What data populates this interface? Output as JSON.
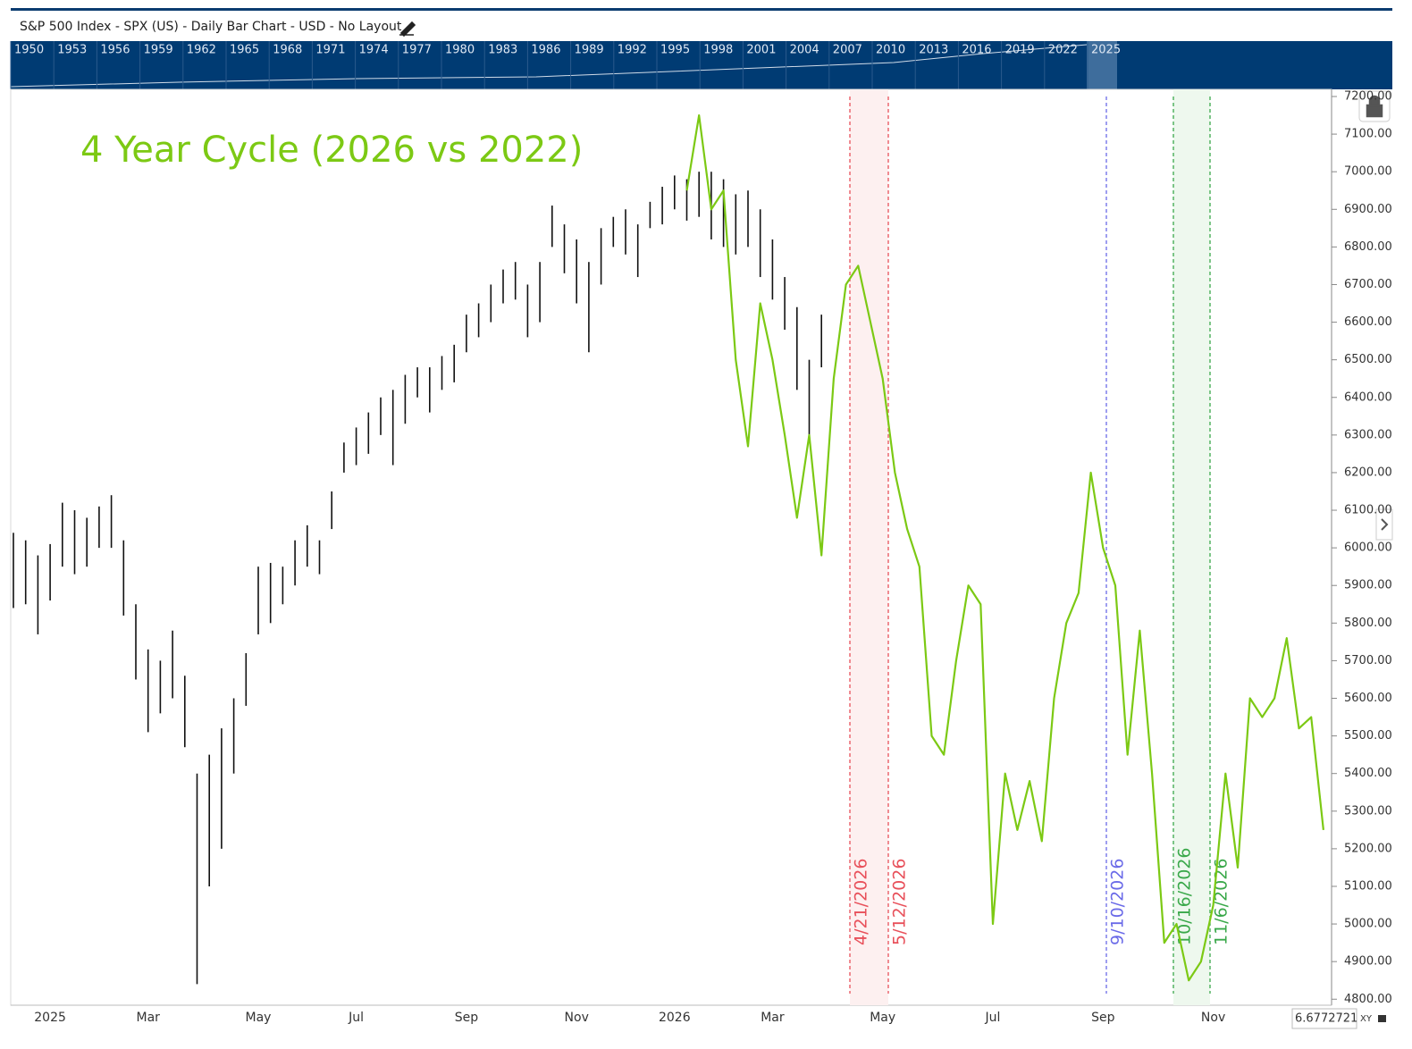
{
  "header": {
    "title": "S&P 500 Index - SPX (US) - Daily Bar Chart - USD - No Layout"
  },
  "navigator": {
    "years": [
      "1950",
      "1953",
      "1956",
      "1959",
      "1962",
      "1965",
      "1968",
      "1971",
      "1974",
      "1977",
      "1980",
      "1983",
      "1986",
      "1989",
      "1992",
      "1995",
      "1998",
      "2001",
      "2004",
      "2007",
      "2010",
      "2013",
      "2016",
      "2019",
      "2022",
      "2025"
    ]
  },
  "footer": {
    "readout": "6.6772721",
    "mode": "XY"
  },
  "chart_data": {
    "type": "ohlc",
    "title": "4 Year Cycle (2026 vs 2022)",
    "categories": [
      null,
      null,
      null,
      "2025",
      null,
      null,
      null,
      null,
      null,
      null,
      null,
      "Mar",
      null,
      null,
      null,
      null,
      null,
      null,
      null,
      null,
      "May",
      null,
      null,
      null,
      null,
      null,
      null,
      null,
      "Jul",
      null,
      null,
      null,
      null,
      null,
      null,
      null,
      null,
      "Sep",
      null,
      null,
      null,
      null,
      null,
      null,
      null,
      null,
      "Nov",
      null,
      null,
      null,
      null,
      null,
      null,
      null,
      "2026",
      null,
      null,
      null,
      null,
      null,
      null,
      null,
      "Mar",
      null,
      null,
      null,
      null,
      null,
      null,
      null,
      null,
      "May",
      null,
      null,
      null,
      null,
      null,
      null,
      null,
      null,
      "Jul",
      null,
      null,
      null,
      null,
      null,
      null,
      null,
      null,
      "Sep",
      null,
      null,
      null,
      null,
      null,
      null,
      null,
      null,
      "Nov",
      null,
      null,
      null,
      null,
      null,
      null,
      null,
      null,
      null
    ],
    "bars": {
      "color": "#111111",
      "high": [
        6040,
        6020,
        5980,
        6010,
        6120,
        6100,
        6080,
        6110,
        6140,
        6020,
        5850,
        5730,
        5700,
        5780,
        5660,
        5400,
        5450,
        5520,
        5600,
        5720,
        5950,
        5960,
        5950,
        6020,
        6060,
        6020,
        6150,
        6280,
        6320,
        6360,
        6400,
        6420,
        6460,
        6480,
        6480,
        6510,
        6540,
        6620,
        6650,
        6700,
        6740,
        6760,
        6700,
        6760,
        6910,
        6860,
        6820,
        6760,
        6850,
        6880,
        6900,
        6860,
        6920,
        6960,
        6990,
        6980,
        7000,
        7000,
        6980,
        6940,
        6950,
        6900,
        6820,
        6720,
        6640,
        6500,
        6620,
        null,
        null,
        null,
        null,
        null,
        null,
        null,
        null,
        null,
        null,
        null,
        null,
        null,
        null,
        null,
        null,
        null,
        null,
        null,
        null,
        null,
        null,
        null,
        null,
        null,
        null,
        null,
        null,
        null,
        null,
        null,
        null,
        null,
        null,
        null,
        null,
        null,
        null,
        null,
        null,
        null
      ],
      "low": [
        5840,
        5850,
        5770,
        5860,
        5950,
        5930,
        5950,
        6000,
        6000,
        5820,
        5650,
        5510,
        5560,
        5600,
        5470,
        4840,
        5100,
        5200,
        5400,
        5580,
        5770,
        5800,
        5850,
        5900,
        5950,
        5930,
        6050,
        6200,
        6220,
        6250,
        6300,
        6220,
        6330,
        6400,
        6360,
        6420,
        6440,
        6520,
        6560,
        6600,
        6650,
        6660,
        6560,
        6600,
        6800,
        6730,
        6650,
        6520,
        6700,
        6800,
        6780,
        6720,
        6850,
        6860,
        6900,
        6870,
        6880,
        6820,
        6800,
        6780,
        6800,
        6720,
        6660,
        6580,
        6420,
        6300,
        6480,
        null,
        null,
        null,
        null,
        null,
        null,
        null,
        null,
        null,
        null,
        null,
        null,
        null,
        null,
        null,
        null,
        null,
        null,
        null,
        null,
        null,
        null,
        null,
        null,
        null,
        null,
        null,
        null,
        null,
        null,
        null,
        null,
        null,
        null,
        null,
        null,
        null,
        null,
        null,
        null,
        null
      ]
    },
    "line": {
      "color": "#7cc914",
      "values": [
        null,
        null,
        null,
        null,
        null,
        null,
        null,
        null,
        null,
        null,
        null,
        null,
        null,
        null,
        null,
        null,
        null,
        null,
        null,
        null,
        null,
        null,
        null,
        null,
        null,
        null,
        null,
        null,
        null,
        null,
        null,
        null,
        null,
        null,
        null,
        null,
        null,
        null,
        null,
        null,
        null,
        null,
        null,
        null,
        null,
        null,
        null,
        null,
        null,
        null,
        null,
        null,
        null,
        null,
        null,
        6950,
        7150,
        6900,
        6950,
        6500,
        6270,
        6650,
        6500,
        6300,
        6080,
        6300,
        5980,
        6450,
        6700,
        6750,
        6600,
        6450,
        6200,
        6050,
        5950,
        5500,
        5450,
        5700,
        5900,
        5850,
        5000,
        5400,
        5250,
        5380,
        5220,
        5600,
        5800,
        5880,
        6200,
        6000,
        5900,
        5450,
        5780,
        5400,
        4950,
        5000,
        4850,
        4900,
        5050,
        5400,
        5150,
        5600,
        5550,
        5600,
        5760,
        5520,
        5550,
        5250
      ]
    },
    "annotations": [
      {
        "label": "4/21/2026",
        "color": "#e8505a"
      },
      {
        "label": "5/12/2026",
        "color": "#e8505a"
      },
      {
        "label": "9/10/2026",
        "color": "#6a6ae8"
      },
      {
        "label": "10/16/2026",
        "color": "#3aa84a"
      },
      {
        "label": "11/6/2026",
        "color": "#3aa84a"
      }
    ],
    "ylim": [
      4784,
      7219
    ],
    "yticks": [
      {
        "value": 4800,
        "label": "4800.00"
      },
      {
        "value": 4900,
        "label": "4900.00"
      },
      {
        "value": 5000,
        "label": "5000.00"
      },
      {
        "value": 5100,
        "label": "5100.00"
      },
      {
        "value": 5200,
        "label": "5200.00"
      },
      {
        "value": 5300,
        "label": "5300.00"
      },
      {
        "value": 5400,
        "label": "5400.00"
      },
      {
        "value": 5500,
        "label": "5500.00"
      },
      {
        "value": 5600,
        "label": "5600.00"
      },
      {
        "value": 5700,
        "label": "5700.00"
      },
      {
        "value": 5800,
        "label": "5800.00"
      },
      {
        "value": 5900,
        "label": "5900.00"
      },
      {
        "value": 6000,
        "label": "6000.00"
      },
      {
        "value": 6100,
        "label": "6100.00"
      },
      {
        "value": 6200,
        "label": "6200.00"
      },
      {
        "value": 6300,
        "label": "6300.00"
      },
      {
        "value": 6400,
        "label": "6400.00"
      },
      {
        "value": 6500,
        "label": "6500.00"
      },
      {
        "value": 6600,
        "label": "6600.00"
      },
      {
        "value": 6700,
        "label": "6700.00"
      },
      {
        "value": 6800,
        "label": "6800.00"
      },
      {
        "value": 6900,
        "label": "6900.00"
      },
      {
        "value": 7000,
        "label": "7000.00"
      },
      {
        "value": 7100,
        "label": "7100.00"
      },
      {
        "value": 7200,
        "label": "7200.00"
      }
    ],
    "grid": false
  }
}
